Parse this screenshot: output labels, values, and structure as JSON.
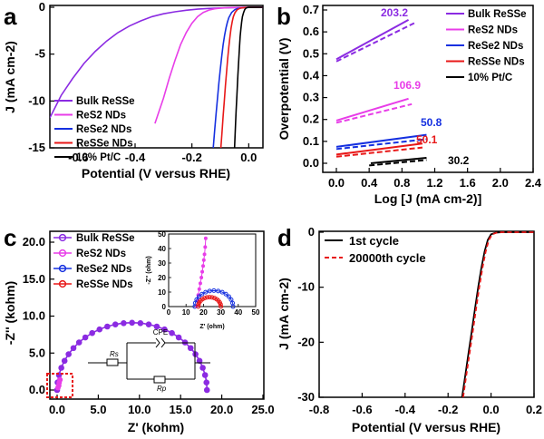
{
  "panel_letters": [
    "a",
    "b",
    "c",
    "d"
  ],
  "colors": {
    "bulk": "#8b2be2",
    "res2": "#e83de8",
    "rese2": "#1530e0",
    "resse": "#e81818",
    "ptc": "#000000"
  },
  "chart_data": [
    {
      "panel": "a",
      "type": "line",
      "xlabel": "Potential (V versus RHE)",
      "ylabel": "J (mA cm-2)",
      "xlim": [
        -0.7,
        0.05
      ],
      "ylim": [
        -15,
        0
      ],
      "xticks": [
        "-0.6",
        "-0.4",
        "-0.2",
        "0.0"
      ],
      "yticks": [
        "0",
        "-5",
        "-10",
        "-15"
      ],
      "legend": [
        "Bulk ReSSe",
        "ReS2 NDs",
        "ReSe2 NDs",
        "ReSSe NDs",
        "10% Pt/C"
      ],
      "series": [
        {
          "name": "Bulk ReSSe",
          "color_key": "bulk",
          "x": [
            -0.7,
            -0.66,
            -0.62,
            -0.58,
            -0.54,
            -0.5,
            -0.46,
            -0.42,
            -0.38,
            -0.34,
            -0.3,
            -0.26,
            -0.22,
            -0.18,
            -0.14,
            -0.1,
            -0.06,
            -0.02,
            0.02,
            0.05
          ],
          "y": [
            -11.8,
            -9.4,
            -7.6,
            -6.0,
            -4.7,
            -3.6,
            -2.7,
            -2.0,
            -1.45,
            -1.0,
            -0.7,
            -0.48,
            -0.32,
            -0.2,
            -0.13,
            -0.08,
            -0.05,
            -0.03,
            -0.01,
            0.0
          ]
        },
        {
          "name": "ReS2 NDs",
          "color_key": "res2",
          "x": [
            -0.33,
            -0.3,
            -0.28,
            -0.26,
            -0.24,
            -0.22,
            -0.2,
            -0.18,
            -0.16,
            -0.14,
            -0.12,
            -0.1,
            -0.07,
            -0.04,
            0.0,
            0.05
          ],
          "y": [
            -12.4,
            -9.7,
            -7.6,
            -5.7,
            -4.0,
            -2.7,
            -1.7,
            -1.0,
            -0.55,
            -0.3,
            -0.16,
            -0.09,
            -0.04,
            -0.02,
            -0.01,
            0.0
          ]
        },
        {
          "name": "ReSe2 NDs",
          "color_key": "rese2",
          "x": [
            -0.125,
            -0.12,
            -0.115,
            -0.11,
            -0.105,
            -0.1,
            -0.095,
            -0.09,
            -0.085,
            -0.08,
            -0.075,
            -0.07,
            -0.06,
            -0.05,
            -0.04,
            -0.02,
            0.0,
            0.05
          ],
          "y": [
            -15.0,
            -13.2,
            -11.4,
            -9.7,
            -8.1,
            -6.6,
            -5.2,
            -4.0,
            -3.0,
            -2.2,
            -1.6,
            -1.1,
            -0.55,
            -0.28,
            -0.14,
            -0.05,
            -0.02,
            0.0
          ]
        },
        {
          "name": "ReSSe NDs",
          "color_key": "resse",
          "x": [
            -0.098,
            -0.094,
            -0.09,
            -0.086,
            -0.082,
            -0.078,
            -0.074,
            -0.07,
            -0.066,
            -0.062,
            -0.058,
            -0.054,
            -0.048,
            -0.04,
            -0.03,
            -0.015,
            0.0,
            0.05
          ],
          "y": [
            -15.0,
            -13.3,
            -11.6,
            -10.0,
            -8.4,
            -6.9,
            -5.5,
            -4.2,
            -3.1,
            -2.2,
            -1.5,
            -1.0,
            -0.55,
            -0.25,
            -0.1,
            -0.04,
            -0.01,
            0.0
          ]
        },
        {
          "name": "10% Pt/C",
          "color_key": "ptc",
          "x": [
            -0.05,
            -0.048,
            -0.046,
            -0.044,
            -0.042,
            -0.04,
            -0.038,
            -0.036,
            -0.034,
            -0.032,
            -0.03,
            -0.028,
            -0.025,
            -0.022,
            -0.018,
            -0.014,
            -0.01,
            -0.005,
            0.0,
            0.05
          ],
          "y": [
            -15.0,
            -13.6,
            -12.2,
            -10.9,
            -9.6,
            -8.4,
            -7.2,
            -6.0,
            -5.0,
            -4.0,
            -3.1,
            -2.4,
            -1.6,
            -1.0,
            -0.55,
            -0.25,
            -0.1,
            -0.03,
            -0.01,
            0.0
          ]
        }
      ]
    },
    {
      "panel": "b",
      "type": "line",
      "xlabel": "Log [J (mA cm-2)]",
      "ylabel": "Overpotential (V)",
      "xlim": [
        -0.2,
        2.4
      ],
      "ylim": [
        -0.05,
        0.72
      ],
      "xticks": [
        "0.0",
        "0.4",
        "0.8",
        "1.2",
        "1.6",
        "2.0",
        "2.4"
      ],
      "yticks": [
        "0.0",
        "0.1",
        "0.2",
        "0.3",
        "0.4",
        "0.5",
        "0.6",
        "0.7"
      ],
      "legend": [
        "Bulk ReSSe",
        "ReS2 NDs",
        "ReSe2 NDs",
        "ReSSe NDs",
        "10% Pt/C"
      ],
      "series": [
        {
          "name": "Bulk ReSSe",
          "color_key": "bulk",
          "tafel_label": "203.2",
          "solid": [
            [
              0.0,
              0.475
            ],
            [
              0.88,
              0.655
            ]
          ],
          "dashed": [
            [
              0.0,
              0.465
            ],
            [
              0.95,
              0.64
            ]
          ]
        },
        {
          "name": "ReS2 NDs",
          "color_key": "res2",
          "tafel_label": "106.9",
          "solid": [
            [
              0.0,
              0.195
            ],
            [
              0.88,
              0.295
            ]
          ],
          "dashed": [
            [
              0.0,
              0.185
            ],
            [
              0.92,
              0.27
            ]
          ]
        },
        {
          "name": "ReSe2 NDs",
          "color_key": "rese2",
          "tafel_label": "50.8",
          "solid": [
            [
              0.0,
              0.075
            ],
            [
              1.1,
              0.13
            ]
          ],
          "dashed": [
            [
              0.0,
              0.065
            ],
            [
              1.1,
              0.11
            ]
          ]
        },
        {
          "name": "ReSSe NDs",
          "color_key": "resse",
          "tafel_label": "50.1",
          "solid": [
            [
              0.0,
              0.04
            ],
            [
              1.05,
              0.09
            ]
          ],
          "dashed": [
            [
              0.0,
              0.03
            ],
            [
              1.05,
              0.072
            ]
          ]
        },
        {
          "name": "10% Pt/C",
          "color_key": "ptc",
          "tafel_label": "30.2",
          "solid": [
            [
              0.42,
              0.0
            ],
            [
              1.1,
              0.025
            ]
          ],
          "dashed": [
            [
              0.4,
              -0.01
            ],
            [
              1.1,
              0.015
            ]
          ]
        }
      ]
    },
    {
      "panel": "c",
      "type": "scatter",
      "xlabel": "Z' (kohm)",
      "ylabel": "-Z'' (kohm)",
      "xlim": [
        -0.5,
        25
      ],
      "ylim": [
        -0.8,
        20
      ],
      "xticks": [
        "0.0",
        "5.0",
        "10.0",
        "15.0",
        "20.0",
        "25.0"
      ],
      "yticks": [
        "0.0",
        "5.0",
        "10.0",
        "15.0",
        "20.0"
      ],
      "legend": [
        "Bulk ReSSe",
        "ReS2 NDs",
        "ReSe2 NDs",
        "ReSSe NDs"
      ],
      "semicircle": {
        "series": "Bulk ReSSe",
        "color_key": "bulk",
        "center_x": 9.1,
        "radius": 9.1
      },
      "circuit_labels": {
        "cpe": "CPE",
        "rs": "Rs",
        "rp": "Rp"
      },
      "inset": {
        "xlabel": "Z' (ohm)",
        "ylabel": "-Z'' (ohm)",
        "xlim": [
          0,
          50
        ],
        "ylim": [
          0,
          50
        ],
        "xticks": [
          "0",
          "10",
          "20",
          "30",
          "40",
          "50"
        ],
        "yticks": [
          "0",
          "10",
          "20",
          "30",
          "40",
          "50"
        ],
        "series": [
          {
            "name": "ReS2 NDs",
            "color_key": "res2",
            "x": [
              16,
              16.5,
              17,
              17.6,
              18.2,
              18.8,
              19.3,
              19.8,
              20.2,
              20.6,
              21,
              21.3
            ],
            "y": [
              0.5,
              4,
              8,
              12,
              16,
              20,
              24,
              28,
              32,
              36,
              41,
              47
            ]
          },
          {
            "name": "ReSe2 NDs",
            "color_key": "rese2",
            "arc": {
              "center": 26,
              "radius": 11
            }
          },
          {
            "name": "ReSSe NDs",
            "color_key": "resse",
            "arc": {
              "center": 23.5,
              "radius": 6.5
            }
          }
        ]
      }
    },
    {
      "panel": "d",
      "type": "line",
      "xlabel": "Potential (V versus RHE)",
      "ylabel": "J (mA cm-2)",
      "xlim": [
        -0.8,
        0.2
      ],
      "ylim": [
        -30,
        1
      ],
      "xticks": [
        "-0.8",
        "-0.6",
        "-0.4",
        "-0.2",
        "0.0",
        "0.2"
      ],
      "yticks": [
        "0",
        "-10",
        "-20",
        "-30"
      ],
      "legend": [
        "1st cycle",
        "20000th cycle"
      ],
      "series": [
        {
          "name": "1st cycle",
          "color_key": "ptc",
          "dash": false,
          "x": [
            -0.135,
            -0.12,
            -0.105,
            -0.09,
            -0.075,
            -0.06,
            -0.045,
            -0.03,
            -0.015,
            0.0,
            0.02,
            0.05,
            0.1,
            0.2
          ],
          "y": [
            -30,
            -26,
            -22,
            -18,
            -14,
            -10,
            -6.5,
            -3.5,
            -1.4,
            -0.4,
            -0.1,
            0.0,
            0.0,
            0.0
          ]
        },
        {
          "name": "20000th cycle",
          "color_key": "resse",
          "dash": true,
          "x": [
            -0.13,
            -0.115,
            -0.1,
            -0.085,
            -0.07,
            -0.055,
            -0.04,
            -0.025,
            -0.01,
            0.005,
            0.025,
            0.05,
            0.1,
            0.2
          ],
          "y": [
            -30,
            -26,
            -22,
            -18,
            -14,
            -10,
            -6.5,
            -3.5,
            -1.4,
            -0.4,
            -0.1,
            0.0,
            0.0,
            0.0
          ]
        }
      ]
    }
  ]
}
